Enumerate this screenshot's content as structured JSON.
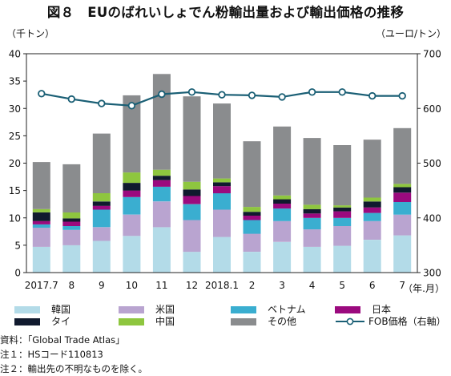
{
  "title": "図８　EUのばれいしょでん粉輸出量および輸出価格の推移",
  "y_left_unit": "（千トン）",
  "y_right_unit": "（ユーロ/トン）",
  "x_unit": "（年.月）",
  "notes": [
    "資料：「Global Trade Atlas」",
    "注１：HSコード110813",
    "注２：輸出先の不明なものを除く。"
  ],
  "colors": {
    "韓国": "#b3dbe8",
    "米国": "#b9a4d0",
    "ベトナム": "#3aaed0",
    "日本": "#9b0a7e",
    "タイ": "#101a2e",
    "中国": "#8ec63f",
    "その他": "#8a8c8e",
    "FOB価格（右軸）": "#1a5f75"
  },
  "chart_data": {
    "type": "bar",
    "stacked": true,
    "categories": [
      "2017.7",
      "8",
      "9",
      "10",
      "11",
      "12",
      "2018.1",
      "2",
      "3",
      "4",
      "5",
      "6",
      "7"
    ],
    "series": [
      {
        "name": "韓国",
        "values": [
          4.7,
          5.0,
          5.8,
          6.7,
          8.3,
          3.8,
          6.5,
          3.8,
          5.6,
          4.7,
          4.9,
          6.0,
          6.8
        ]
      },
      {
        "name": "米国",
        "values": [
          3.5,
          2.8,
          2.5,
          3.9,
          4.7,
          5.8,
          5.0,
          3.3,
          3.8,
          3.2,
          3.6,
          3.4,
          3.8
        ]
      },
      {
        "name": "ベトナム",
        "values": [
          0.6,
          0.7,
          3.2,
          3.2,
          2.7,
          2.9,
          3.0,
          2.5,
          2.3,
          2.1,
          1.5,
          1.5,
          2.3
        ]
      },
      {
        "name": "日本",
        "values": [
          0.6,
          0.8,
          0.7,
          1.2,
          1.2,
          1.5,
          1.3,
          0.8,
          0.9,
          0.8,
          1.2,
          1.0,
          1.7
        ]
      },
      {
        "name": "タイ",
        "values": [
          1.6,
          0.6,
          0.8,
          1.4,
          0.8,
          1.2,
          0.7,
          0.7,
          0.8,
          0.8,
          0.7,
          1.1,
          1.0
        ]
      },
      {
        "name": "中国",
        "values": [
          0.6,
          1.1,
          1.5,
          1.9,
          1.1,
          1.4,
          0.7,
          0.9,
          0.7,
          0.8,
          0.4,
          0.7,
          0.6
        ]
      },
      {
        "name": "その他",
        "values": [
          8.6,
          8.8,
          10.9,
          14.1,
          17.5,
          15.6,
          13.7,
          12.0,
          12.6,
          12.2,
          11.0,
          10.6,
          10.2
        ]
      }
    ],
    "line_series": {
      "name": "FOB価格（右軸）",
      "axis": "right",
      "values": [
        627,
        617,
        609,
        605,
        626,
        630,
        625,
        624,
        621,
        630,
        630,
        623,
        623
      ]
    },
    "y_left": {
      "ylim": [
        0,
        40
      ],
      "ticks": [
        0,
        5,
        10,
        15,
        20,
        25,
        30,
        35,
        40
      ]
    },
    "y_right": {
      "ylim": [
        300,
        700
      ],
      "ticks": [
        300,
        400,
        500,
        600,
        700
      ]
    },
    "grid": false,
    "legend_position": "bottom",
    "legend": [
      "韓国",
      "米国",
      "ベトナム",
      "日本",
      "タイ",
      "中国",
      "その他",
      "FOB価格（右軸）"
    ]
  }
}
